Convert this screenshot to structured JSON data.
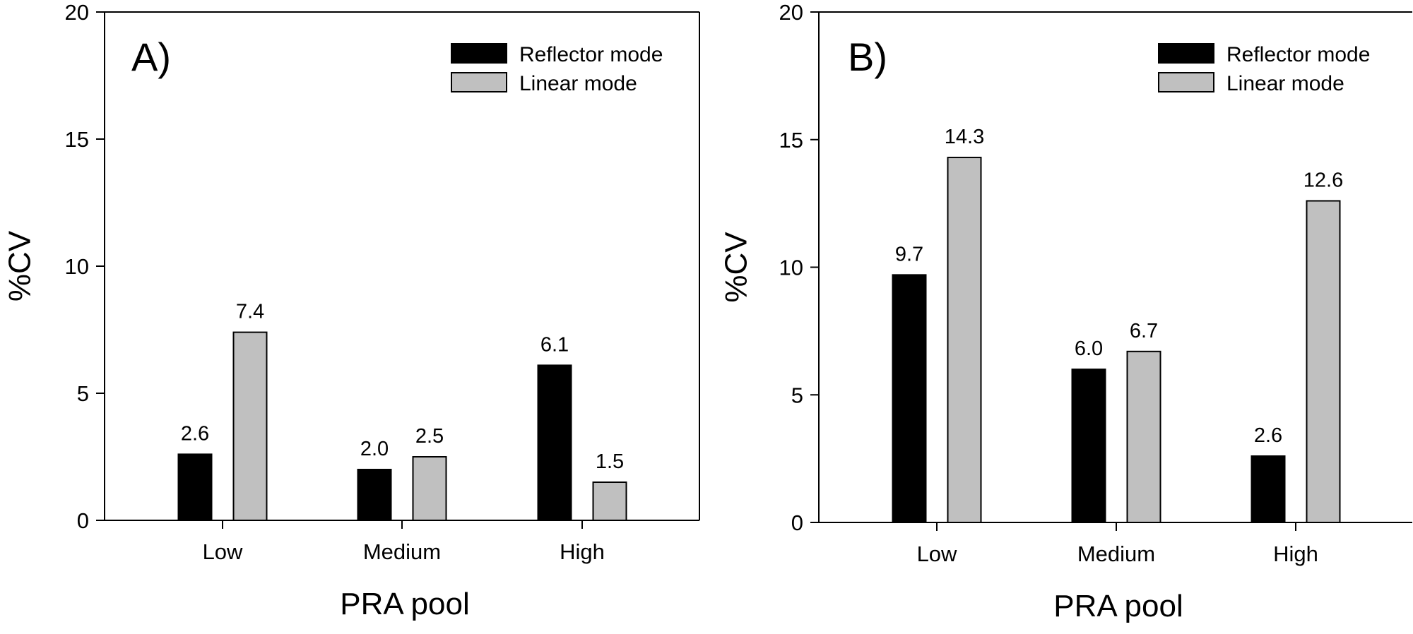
{
  "colors": {
    "reflector": "#000000",
    "linear": "#c0c0c0",
    "axis": "#000000"
  },
  "chart_data": [
    {
      "type": "bar",
      "panel_label": "A)",
      "categories": [
        "Low",
        "Medium",
        "High"
      ],
      "series": [
        {
          "name": "Reflector mode",
          "values": [
            2.6,
            2.0,
            6.1
          ]
        },
        {
          "name": "Linear mode",
          "values": [
            7.4,
            2.5,
            1.5
          ]
        }
      ],
      "value_labels": [
        [
          "2.6",
          "2.0",
          "6.1"
        ],
        [
          "7.4",
          "2.5",
          "1.5"
        ]
      ],
      "xlabel": "PRA pool",
      "ylabel": "%CV",
      "ylim": [
        0,
        20
      ],
      "yticks": [
        0,
        5,
        10,
        15,
        20
      ],
      "legend": "top-right",
      "grid": false
    },
    {
      "type": "bar",
      "panel_label": "B)",
      "categories": [
        "Low",
        "Medium",
        "High"
      ],
      "series": [
        {
          "name": "Reflector mode",
          "values": [
            9.7,
            6.0,
            2.6
          ]
        },
        {
          "name": "Linear mode",
          "values": [
            14.3,
            6.7,
            12.6
          ]
        }
      ],
      "value_labels": [
        [
          "9.7",
          "6.0",
          "2.6"
        ],
        [
          "14.3",
          "6.7",
          "12.6"
        ]
      ],
      "xlabel": "PRA pool",
      "ylabel": "%CV",
      "ylim": [
        0,
        20
      ],
      "yticks": [
        0,
        5,
        10,
        15,
        20
      ],
      "legend": "top-right",
      "grid": false
    }
  ]
}
